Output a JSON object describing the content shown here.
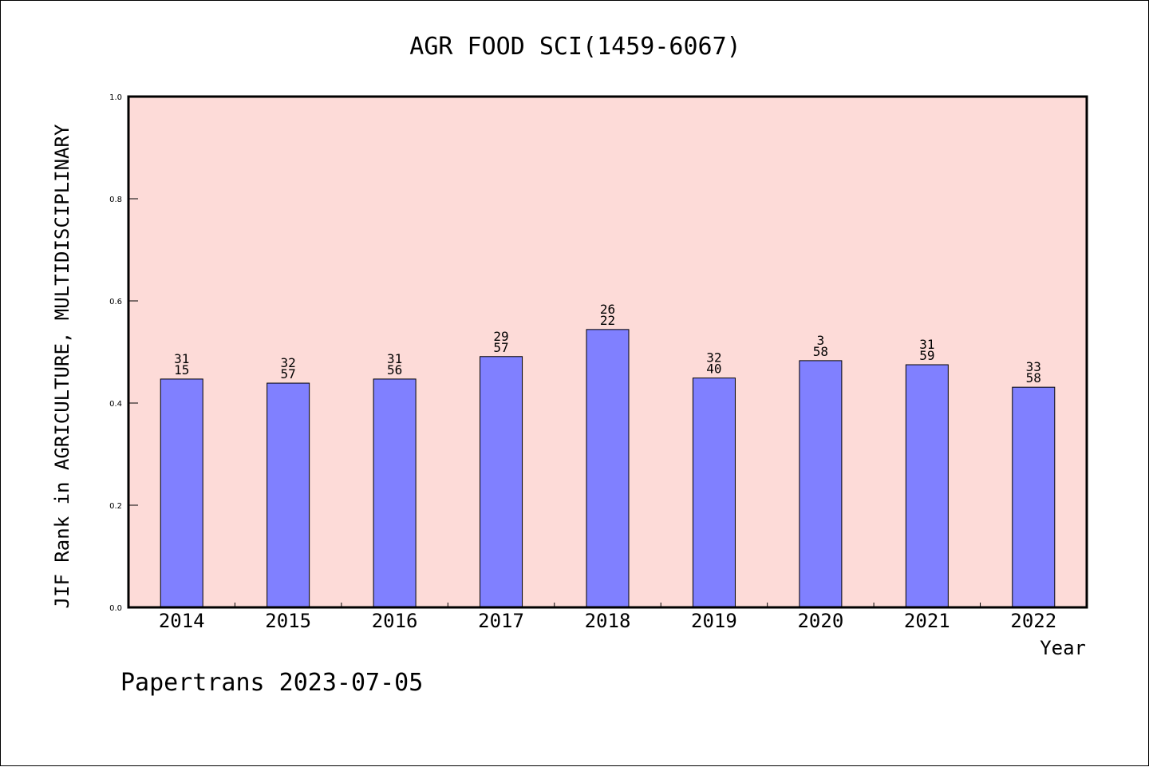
{
  "chart_data": {
    "type": "bar",
    "title": "AGR FOOD SCI(1459-6067)",
    "xlabel": "Year",
    "ylabel": "JIF Rank in AGRICULTURE, MULTIDISCIPLINARY",
    "ylim": [
      0,
      1.0
    ],
    "yticks": [
      "0.0",
      "0.2",
      "0.4",
      "0.6",
      "0.8",
      "1.0"
    ],
    "categories": [
      "2014",
      "2015",
      "2016",
      "2017",
      "2018",
      "2019",
      "2020",
      "2021",
      "2022"
    ],
    "values": [
      0.447,
      0.439,
      0.447,
      0.491,
      0.544,
      0.449,
      0.483,
      0.475,
      0.431
    ],
    "rank_labels": [
      "31",
      "32",
      "31",
      "29",
      "26",
      "32",
      "3",
      "31",
      "33"
    ],
    "total_labels": [
      "15",
      "57",
      "56",
      "57",
      "22",
      "40",
      "58",
      "59",
      "58"
    ],
    "grid": false,
    "colors": {
      "plot_background": "#fddbd8",
      "bar_fill": "#8080ff",
      "bar_stroke": "#000000"
    }
  },
  "footer": "Papertrans 2023-07-05"
}
